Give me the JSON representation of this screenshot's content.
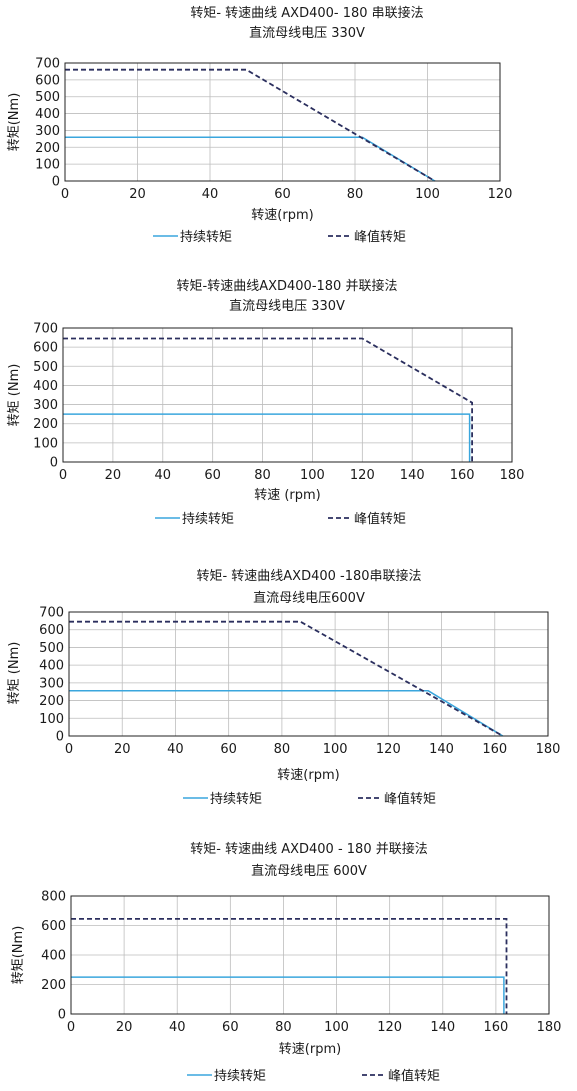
{
  "colors": {
    "continuous": "#3aa6dd",
    "peak": "#2b2f5e",
    "grid": "#bdbdbd",
    "axis": "#222222"
  },
  "chart_data": [
    {
      "type": "line",
      "title": "转矩- 转速曲线 AXD400- 180 串联接法",
      "subtitle": "直流母线电压 330V",
      "xlabel": "转速(rpm)",
      "ylabel": "转矩(Nm)",
      "xlim": [
        0,
        120
      ],
      "ylim": [
        0,
        700
      ],
      "xticks": [
        0,
        20,
        40,
        60,
        80,
        100,
        120
      ],
      "yticks": [
        0,
        100,
        200,
        300,
        400,
        500,
        600,
        700
      ],
      "grid": true,
      "series": [
        {
          "name": "持续转矩",
          "style": "solid",
          "x": [
            0,
            82,
            102
          ],
          "y": [
            260,
            260,
            0
          ]
        },
        {
          "name": "峰值转矩",
          "style": "dashed",
          "x": [
            0,
            50,
            102
          ],
          "y": [
            660,
            660,
            0
          ]
        }
      ]
    },
    {
      "type": "line",
      "title": "转矩-转速曲线AXD400-180 并联接法",
      "subtitle": "直流母线电压 330V",
      "xlabel": "转速 (rpm)",
      "ylabel": "转矩 (Nm)",
      "xlim": [
        0,
        180
      ],
      "ylim": [
        0,
        700
      ],
      "xticks": [
        0,
        20,
        40,
        60,
        80,
        100,
        120,
        140,
        160,
        180
      ],
      "yticks": [
        0,
        100,
        200,
        300,
        400,
        500,
        600,
        700
      ],
      "grid": true,
      "series": [
        {
          "name": "持续转矩",
          "style": "solid",
          "x": [
            0,
            163,
            163
          ],
          "y": [
            250,
            250,
            0
          ]
        },
        {
          "name": "峰值转矩",
          "style": "dashed",
          "x": [
            0,
            120,
            164,
            164
          ],
          "y": [
            645,
            645,
            310,
            0
          ]
        }
      ]
    },
    {
      "type": "line",
      "title": "转矩- 转速曲线AXD400 -180串联接法",
      "subtitle": "直流母线电压600V",
      "xlabel": "转速(rpm)",
      "ylabel": "转矩 (Nm)",
      "xlim": [
        0,
        180
      ],
      "ylim": [
        0,
        700
      ],
      "xticks": [
        0,
        20,
        40,
        60,
        80,
        100,
        120,
        140,
        160,
        180
      ],
      "yticks": [
        0,
        100,
        200,
        300,
        400,
        500,
        600,
        700
      ],
      "grid": true,
      "series": [
        {
          "name": "持续转矩",
          "style": "solid",
          "x": [
            0,
            135,
            163
          ],
          "y": [
            255,
            255,
            0
          ]
        },
        {
          "name": "峰值转矩",
          "style": "dashed",
          "x": [
            0,
            87,
            163
          ],
          "y": [
            645,
            645,
            0
          ]
        }
      ]
    },
    {
      "type": "line",
      "title": "转矩- 转速曲线 AXD400 - 180 并联接法",
      "subtitle": "直流母线电压 600V",
      "xlabel": "转速(rpm)",
      "ylabel": "转矩(Nm)",
      "xlim": [
        0,
        180
      ],
      "ylim": [
        0,
        800
      ],
      "xticks": [
        0,
        20,
        40,
        60,
        80,
        100,
        120,
        140,
        160,
        180
      ],
      "yticks": [
        0,
        200,
        400,
        600,
        800
      ],
      "grid": true,
      "series": [
        {
          "name": "持续转矩",
          "style": "solid",
          "x": [
            0,
            163,
            163
          ],
          "y": [
            250,
            250,
            0
          ]
        },
        {
          "name": "峰值转矩",
          "style": "dashed",
          "x": [
            0,
            164,
            164
          ],
          "y": [
            645,
            645,
            0
          ]
        }
      ]
    }
  ]
}
